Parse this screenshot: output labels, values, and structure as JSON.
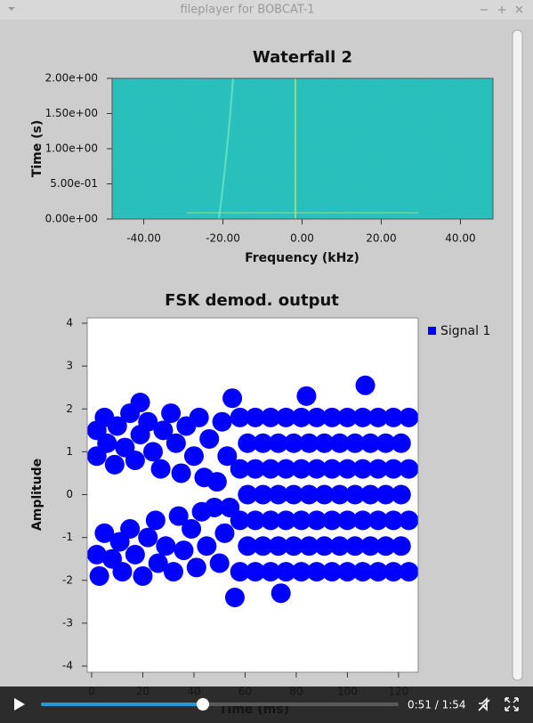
{
  "window": {
    "title": "fileplayer for BOBCAT-1"
  },
  "player": {
    "time": "0:51 / 1:54"
  },
  "chart_data": [
    {
      "type": "waterfall",
      "title": "Waterfall 2",
      "x_label": "Frequency (kHz)",
      "y_label": "Time (s)",
      "xlim": [
        -48,
        48
      ],
      "ylim": [
        0,
        2
      ],
      "xticks": [
        {
          "value": -40,
          "label": "-40.00"
        },
        {
          "value": -20,
          "label": "-20.00"
        },
        {
          "value": 0,
          "label": "0.00"
        },
        {
          "value": 20,
          "label": "20.00"
        },
        {
          "value": 40,
          "label": "40.00"
        }
      ],
      "yticks": [
        {
          "value": 2,
          "label": "2.00e+00"
        },
        {
          "value": 1.5,
          "label": "1.50e+00"
        },
        {
          "value": 1,
          "label": "1.00e+00"
        },
        {
          "value": 0.5,
          "label": "5.00e-01"
        },
        {
          "value": 0,
          "label": "0.00e+00"
        }
      ]
    },
    {
      "type": "scatter",
      "title": "FSK demod. output",
      "x_label": "Time (ms)",
      "y_label": "Amplitude",
      "xlim": [
        0,
        127
      ],
      "ylim": [
        -4,
        4
      ],
      "xticks": [
        0,
        20,
        40,
        60,
        80,
        100,
        120
      ],
      "yticks": [
        -4,
        -3,
        -2,
        -1,
        0,
        1,
        2,
        3,
        4
      ],
      "legend": "top-right",
      "series": [
        {
          "name": "Signal 1",
          "color": "#0000ff",
          "x": [
            2,
            2,
            5,
            6,
            9,
            10,
            13,
            15,
            17,
            19,
            22,
            24,
            27,
            28,
            31,
            33,
            35,
            37,
            40,
            42,
            44,
            46,
            49,
            51,
            53,
            2,
            3,
            5,
            8,
            11,
            12,
            15,
            17,
            20,
            22,
            25,
            26,
            29,
            32,
            34,
            36,
            39,
            41,
            43,
            45,
            48,
            50,
            52,
            54,
            107,
            55,
            84,
            56,
            19,
            74,
            58,
            64,
            70,
            76,
            82,
            88,
            94,
            100,
            106,
            112,
            118,
            124,
            61,
            67,
            73,
            79,
            85,
            91,
            97,
            103,
            109,
            115,
            121,
            58,
            64,
            70,
            76,
            82,
            88,
            94,
            100,
            106,
            112,
            118,
            124,
            61,
            67,
            73,
            79,
            85,
            91,
            97,
            103,
            109,
            115,
            121,
            58,
            64,
            70,
            76,
            82,
            88,
            94,
            100,
            106,
            112,
            118,
            124,
            61,
            67,
            73,
            79,
            85,
            91,
            97,
            103,
            109,
            115,
            121,
            58,
            64,
            70,
            76,
            82,
            88,
            94,
            100,
            106,
            112,
            118,
            124
          ],
          "values": [
            1.5,
            0.9,
            1.8,
            1.2,
            0.7,
            1.6,
            1.1,
            1.9,
            0.8,
            1.4,
            1.7,
            1.0,
            0.6,
            1.5,
            1.9,
            1.2,
            0.5,
            1.6,
            0.9,
            1.8,
            0.4,
            1.3,
            0.3,
            1.7,
            0.9,
            -1.4,
            -1.9,
            -0.9,
            -1.5,
            -1.1,
            -1.8,
            -0.8,
            -1.4,
            -1.9,
            -1.0,
            -0.6,
            -1.6,
            -1.2,
            -1.8,
            -0.5,
            -1.3,
            -0.8,
            -1.7,
            -0.4,
            -1.2,
            -0.3,
            -1.6,
            -0.9,
            -0.3,
            2.55,
            2.25,
            2.3,
            -2.4,
            2.15,
            -2.3,
            -1.8,
            -1.8,
            -1.8,
            -1.8,
            -1.8,
            -1.8,
            -1.8,
            -1.8,
            -1.8,
            -1.8,
            -1.8,
            -1.8,
            -1.2,
            -1.2,
            -1.2,
            -1.2,
            -1.2,
            -1.2,
            -1.2,
            -1.2,
            -1.2,
            -1.2,
            -1.2,
            -0.6,
            -0.6,
            -0.6,
            -0.6,
            -0.6,
            -0.6,
            -0.6,
            -0.6,
            -0.6,
            -0.6,
            -0.6,
            -0.6,
            0,
            0,
            0,
            0,
            0,
            0,
            0,
            0,
            0,
            0,
            0,
            0.6,
            0.6,
            0.6,
            0.6,
            0.6,
            0.6,
            0.6,
            0.6,
            0.6,
            0.6,
            0.6,
            0.6,
            1.2,
            1.2,
            1.2,
            1.2,
            1.2,
            1.2,
            1.2,
            1.2,
            1.2,
            1.2,
            1.2,
            1.8,
            1.8,
            1.8,
            1.8,
            1.8,
            1.8,
            1.8,
            1.8,
            1.8,
            1.8,
            1.8,
            1.8
          ]
        }
      ]
    }
  ]
}
